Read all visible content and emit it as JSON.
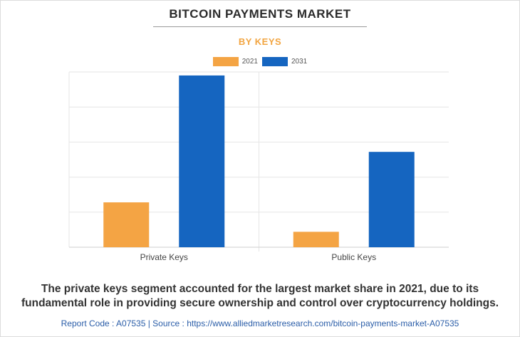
{
  "title": "BITCOIN PAYMENTS MARKET",
  "subtitle": "BY KEYS",
  "legend": [
    {
      "label": "2021",
      "color": "#f4a444"
    },
    {
      "label": "2031",
      "color": "#1565c0"
    }
  ],
  "chart_data": {
    "type": "bar",
    "categories": [
      "Private Keys",
      "Public Keys"
    ],
    "series": [
      {
        "name": "2021",
        "values": [
          1.28,
          0.44
        ],
        "color": "#f4a444"
      },
      {
        "name": "2031",
        "values": [
          4.9,
          2.72
        ],
        "color": "#1565c0"
      }
    ],
    "ylim": [
      0,
      5
    ],
    "y_tick_labels_shown": false,
    "grid": true,
    "legend_position": "top-center"
  },
  "caption": {
    "line1": "The private keys segment accounted for the largest market share in 2021, due to its",
    "line2": "fundamental role in providing secure ownership and control over cryptocurrency holdings."
  },
  "footer": "Report Code : A07535  |  Source : https://www.alliedmarketresearch.com/bitcoin-payments-market-A07535"
}
